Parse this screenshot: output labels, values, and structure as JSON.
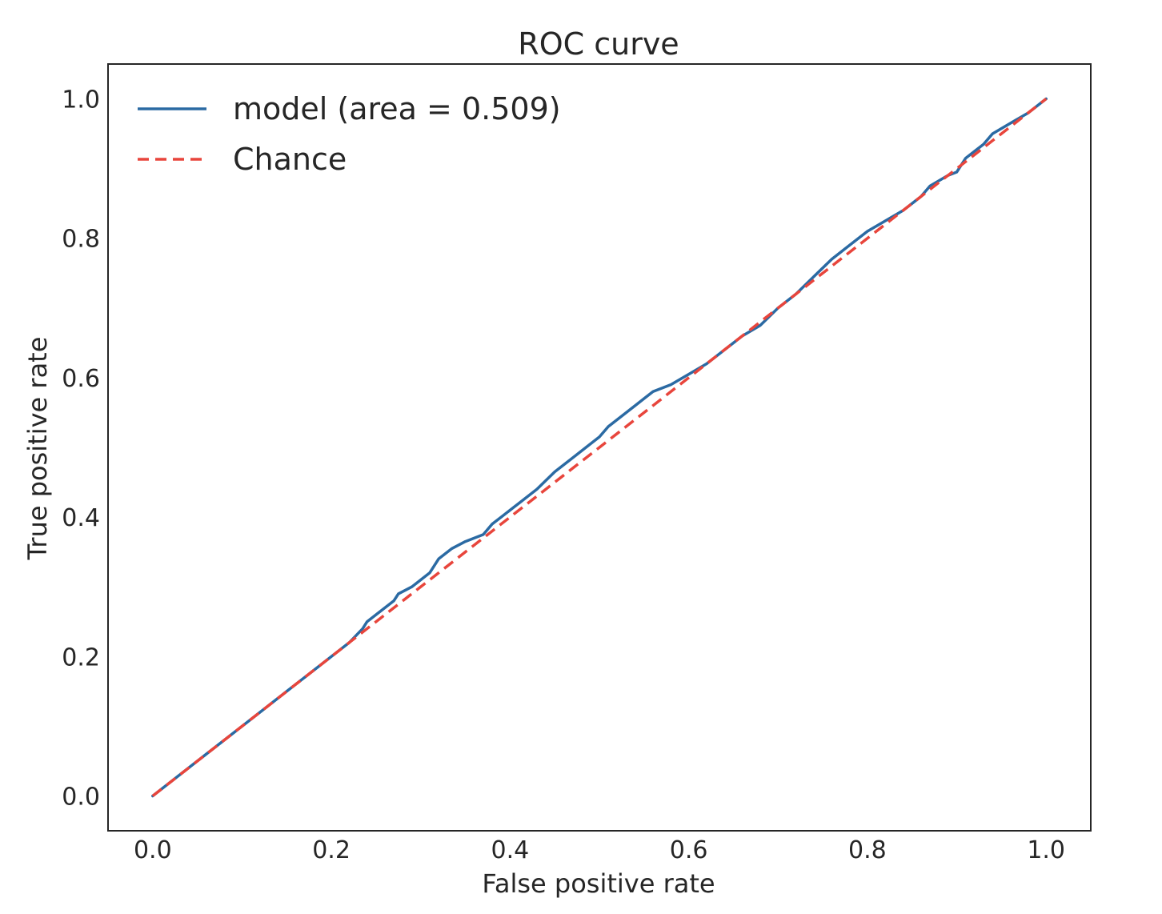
{
  "chart_data": {
    "type": "line",
    "title": "ROC curve",
    "xlabel": "False positive rate",
    "ylabel": "True positive rate",
    "xlim": [
      -0.05,
      1.05
    ],
    "ylim": [
      -0.05,
      1.05
    ],
    "xticks": [
      "0.0",
      "0.2",
      "0.4",
      "0.6",
      "0.8",
      "1.0"
    ],
    "yticks": [
      "0.0",
      "0.2",
      "0.4",
      "0.6",
      "0.8",
      "1.0"
    ],
    "grid": false,
    "legend_position": "top-left",
    "series": [
      {
        "name": "model (area = 0.509)",
        "color": "#2b6aa3",
        "style": "solid",
        "x": [
          0.0,
          0.05,
          0.1,
          0.15,
          0.2,
          0.22,
          0.235,
          0.24,
          0.25,
          0.27,
          0.275,
          0.29,
          0.31,
          0.32,
          0.335,
          0.35,
          0.36,
          0.37,
          0.38,
          0.39,
          0.41,
          0.43,
          0.45,
          0.47,
          0.49,
          0.5,
          0.51,
          0.52,
          0.53,
          0.54,
          0.55,
          0.56,
          0.58,
          0.6,
          0.62,
          0.64,
          0.66,
          0.68,
          0.7,
          0.72,
          0.74,
          0.76,
          0.78,
          0.8,
          0.82,
          0.84,
          0.86,
          0.87,
          0.89,
          0.9,
          0.91,
          0.92,
          0.93,
          0.94,
          0.96,
          0.98,
          1.0
        ],
        "y": [
          0.0,
          0.05,
          0.1,
          0.15,
          0.2,
          0.22,
          0.24,
          0.25,
          0.26,
          0.28,
          0.29,
          0.3,
          0.32,
          0.34,
          0.355,
          0.365,
          0.37,
          0.375,
          0.39,
          0.4,
          0.42,
          0.44,
          0.465,
          0.485,
          0.505,
          0.515,
          0.53,
          0.54,
          0.55,
          0.56,
          0.57,
          0.58,
          0.59,
          0.605,
          0.62,
          0.64,
          0.66,
          0.675,
          0.7,
          0.72,
          0.745,
          0.77,
          0.79,
          0.81,
          0.825,
          0.84,
          0.86,
          0.875,
          0.89,
          0.895,
          0.915,
          0.925,
          0.935,
          0.95,
          0.965,
          0.98,
          1.0
        ]
      },
      {
        "name": "Chance",
        "color": "#e8453c",
        "style": "dashed",
        "x": [
          0.0,
          1.0
        ],
        "y": [
          0.0,
          1.0
        ]
      }
    ]
  }
}
